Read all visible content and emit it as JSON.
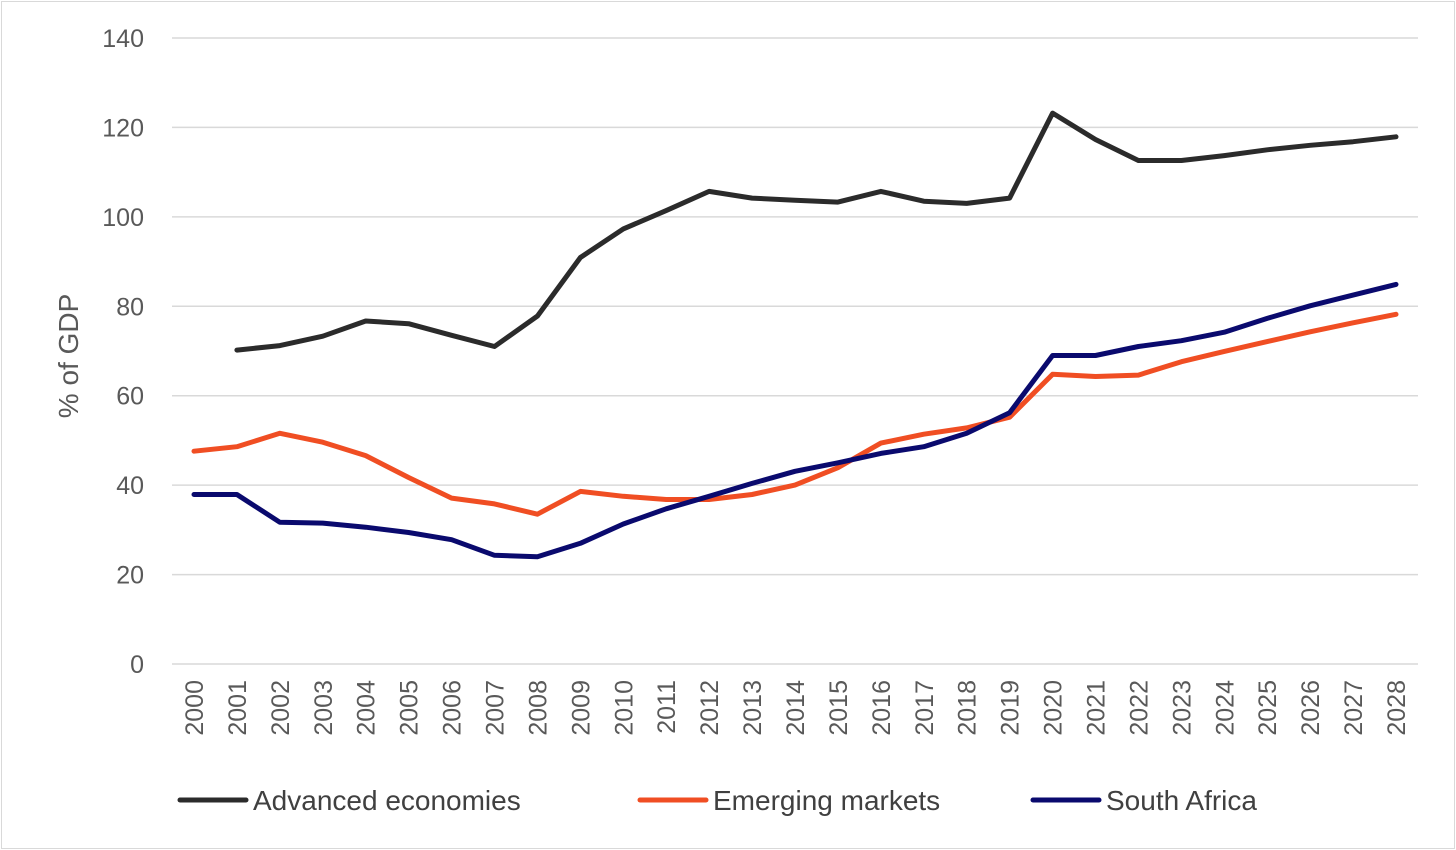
{
  "chart_data": {
    "type": "line",
    "title": "",
    "xlabel": "",
    "ylabel": "% of GDP",
    "ylim": [
      0,
      140
    ],
    "yticks": [
      0,
      20,
      40,
      60,
      80,
      100,
      120,
      140
    ],
    "grid": true,
    "legend_position": "bottom",
    "categories": [
      "2000",
      "2001",
      "2002",
      "2003",
      "2004",
      "2005",
      "2006",
      "2007",
      "2008",
      "2009",
      "2010",
      "2011",
      "2012",
      "2013",
      "2014",
      "2015",
      "2016",
      "2017",
      "2018",
      "2019",
      "2020",
      "2021",
      "2022",
      "2023",
      "2024",
      "2025",
      "2026",
      "2027",
      "2028"
    ],
    "series": [
      {
        "name": "Advanced economies",
        "color": "#2b2b2b",
        "values": [
          null,
          70.2,
          71.2,
          73.3,
          76.7,
          76.1,
          73.5,
          71.0,
          77.8,
          90.9,
          97.3,
          101.4,
          105.7,
          104.2,
          103.7,
          103.3,
          105.7,
          103.5,
          103.0,
          104.2,
          123.2,
          117.3,
          112.6,
          112.6,
          113.7,
          115.0,
          116.0,
          116.8,
          117.9
        ]
      },
      {
        "name": "Emerging markets",
        "color": "#f04e23",
        "values": [
          47.6,
          48.6,
          51.6,
          49.6,
          46.6,
          41.7,
          37.1,
          35.8,
          33.5,
          38.6,
          37.5,
          36.8,
          36.8,
          37.9,
          40.0,
          43.9,
          49.4,
          51.4,
          52.8,
          55.2,
          64.8,
          64.3,
          64.6,
          67.6,
          69.9,
          72.1,
          74.3,
          76.3,
          78.2
        ]
      },
      {
        "name": "South Africa",
        "color": "#0a0a6e",
        "values": [
          37.9,
          37.9,
          31.7,
          31.5,
          30.6,
          29.4,
          27.8,
          24.3,
          24.0,
          27.0,
          31.3,
          34.7,
          37.5,
          40.4,
          43.1,
          45.0,
          47.1,
          48.6,
          51.6,
          56.2,
          69.0,
          69.0,
          71.0,
          72.3,
          74.2,
          77.3,
          80.1,
          82.5,
          84.9
        ]
      }
    ]
  }
}
